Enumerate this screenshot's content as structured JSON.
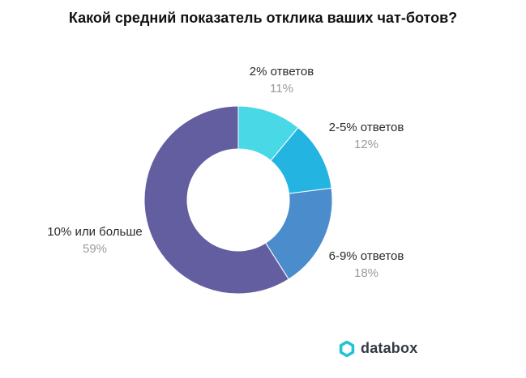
{
  "chart_data": {
    "type": "pie",
    "title": "Какой средний показатель отклика ваших чат-ботов?",
    "categories": [
      "2% ответов",
      "2-5% ответов",
      "6-9% ответов",
      "10% или больше"
    ],
    "values": [
      11,
      12,
      18,
      59
    ],
    "value_labels": [
      "11%",
      "12%",
      "18%",
      "59%"
    ],
    "colors": [
      "#48d8e6",
      "#23b4e1",
      "#4a8ccc",
      "#635ea0"
    ],
    "donut": true
  },
  "brand": {
    "name": "databox",
    "logo_color": "#22c3d6"
  }
}
